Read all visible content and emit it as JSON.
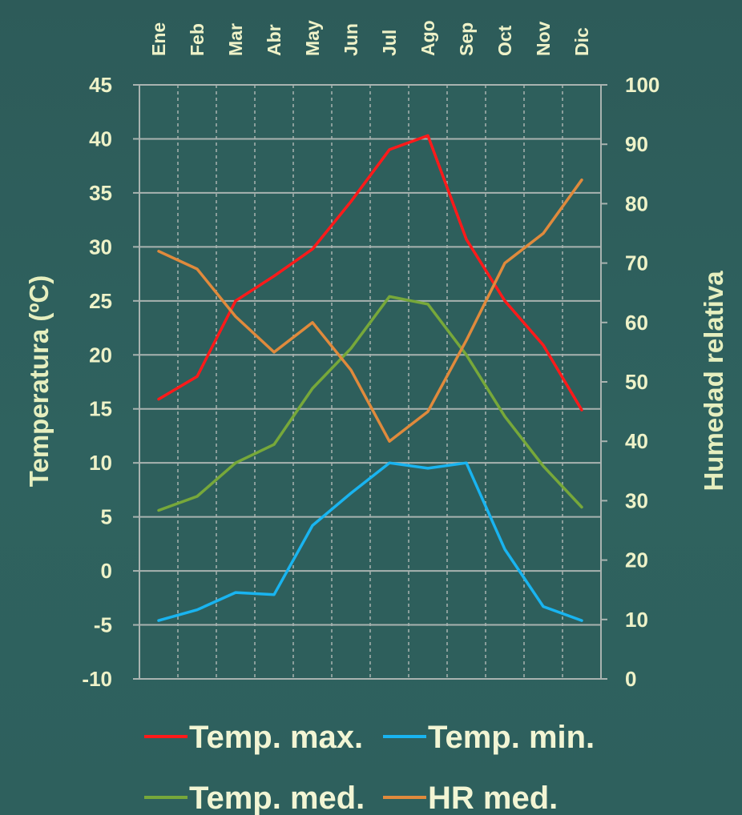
{
  "chart_data": {
    "type": "line",
    "categories": [
      "Ene",
      "Feb",
      "Mar",
      "Abr",
      "May",
      "Jun",
      "Jul",
      "Ago",
      "Sep",
      "Oct",
      "Nov",
      "Dic"
    ],
    "y_left": {
      "label": "Temperatura (ºC)",
      "ylim": [
        -10,
        45
      ],
      "ticks": [
        "45",
        "40",
        "35",
        "30",
        "25",
        "20",
        "15",
        "10",
        "5",
        "0",
        "-5",
        "-10"
      ]
    },
    "y_right": {
      "label": "Humedad relativa",
      "ylim": [
        0,
        100
      ],
      "ticks": [
        "100",
        "90",
        "80",
        "70",
        "60",
        "50",
        "40",
        "30",
        "20",
        "10",
        "0"
      ]
    },
    "grid": true,
    "legend_position": "bottom",
    "series": [
      {
        "name": "Temp. max.",
        "axis": "left",
        "color": "#ff1a1a",
        "values": [
          15.9,
          18.0,
          25.0,
          27.3,
          29.8,
          34.2,
          39.0,
          40.3,
          30.7,
          25.0,
          20.9,
          14.9
        ]
      },
      {
        "name": "Temp. min.",
        "axis": "left",
        "color": "#19b4f0",
        "values": [
          -4.6,
          -3.6,
          -2.0,
          -2.2,
          4.2,
          7.2,
          10.0,
          9.5,
          10.0,
          2.0,
          -3.3,
          -4.6
        ]
      },
      {
        "name": "Temp. med.",
        "axis": "left",
        "color": "#77a83a",
        "values": [
          5.6,
          6.9,
          10.0,
          11.7,
          16.9,
          20.6,
          25.4,
          24.7,
          20.0,
          14.3,
          9.7,
          5.9
        ]
      },
      {
        "name": "HR med.",
        "axis": "right",
        "color": "#e08a3c",
        "values": [
          72,
          69,
          61,
          55,
          60,
          52,
          40,
          45,
          57,
          70,
          75,
          84
        ]
      }
    ]
  }
}
